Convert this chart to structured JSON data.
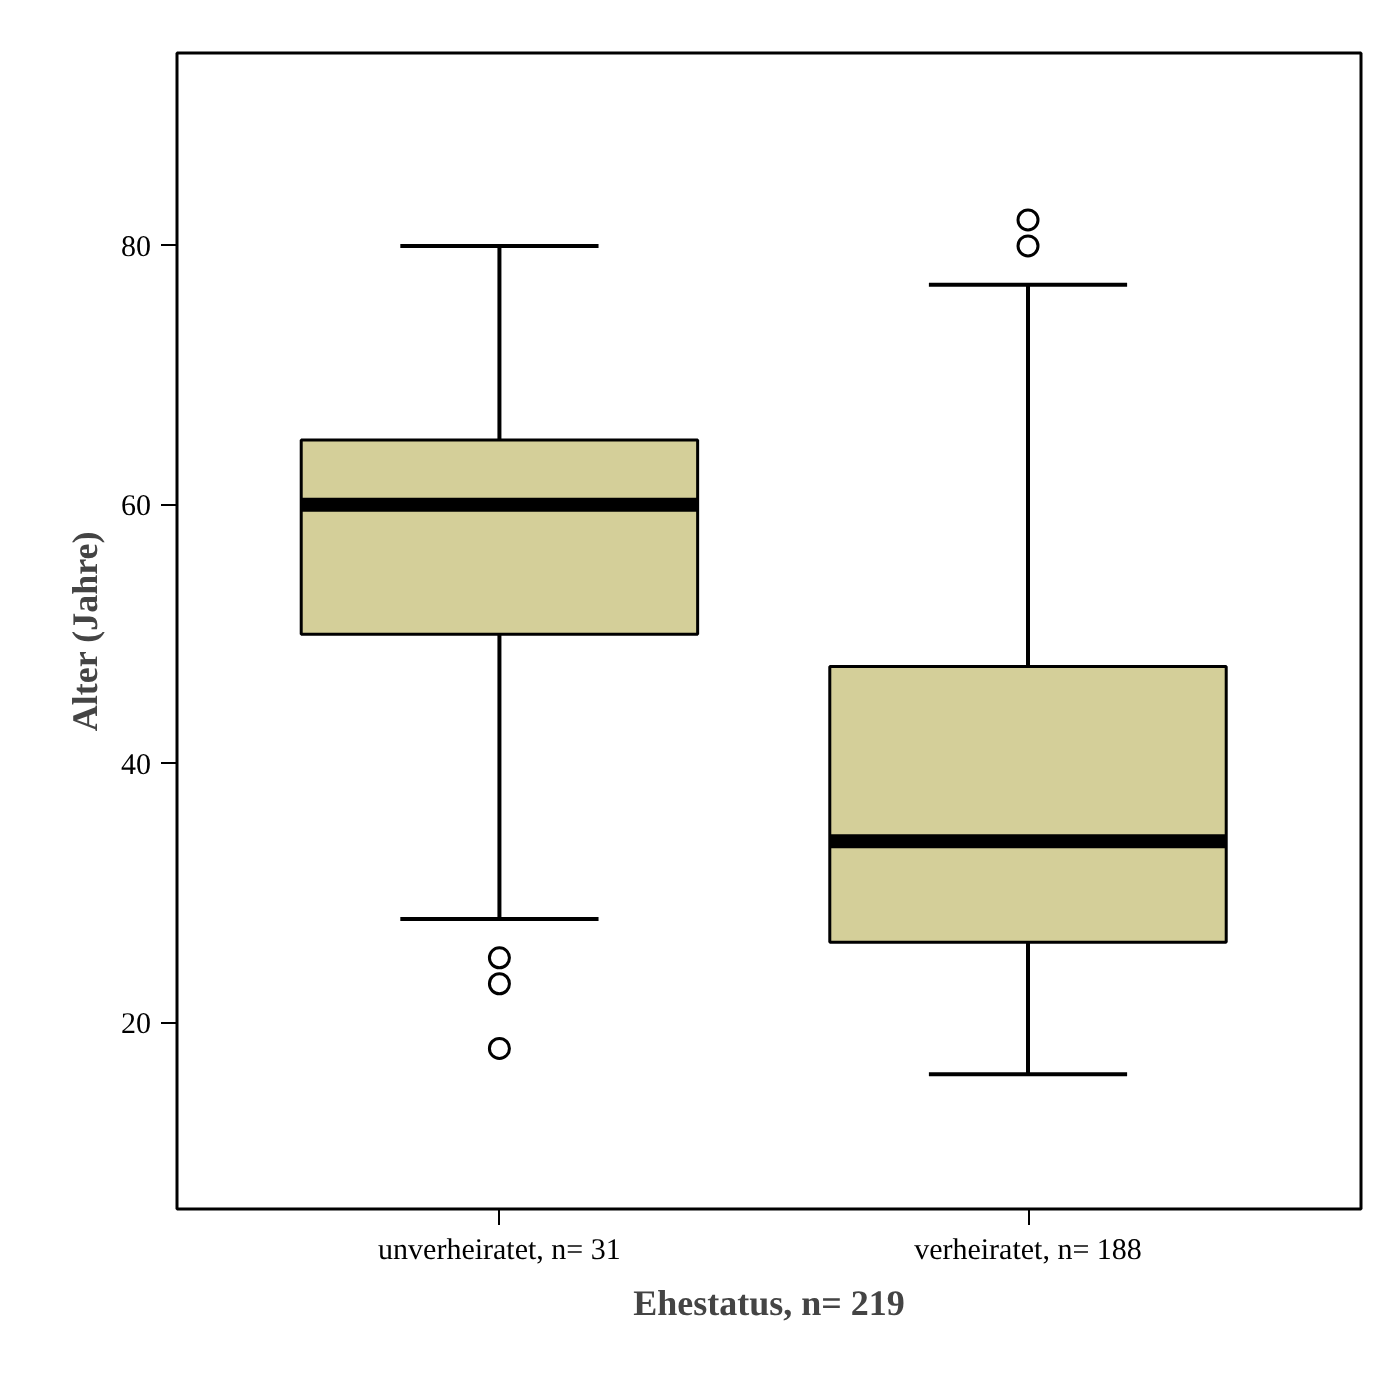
{
  "chart_data": {
    "type": "box",
    "xlabel": "Ehestatus, n= 219",
    "ylabel": "Alter (Jahre)",
    "categories": [
      "unverheiratet, n= 31",
      "verheiratet, n= 188"
    ],
    "color": "#d4cf99",
    "boxes": [
      {
        "low": 28,
        "q1": 50,
        "median": 60,
        "q3": 65,
        "high": 80,
        "outliers": [
          25,
          23,
          18
        ]
      },
      {
        "low": 16,
        "q1": 26.2,
        "median": 34,
        "q3": 47.5,
        "high": 77,
        "outliers": [
          82,
          80
        ]
      }
    ],
    "ylim": [
      5.6,
      94.9
    ],
    "yticks": [
      20,
      40,
      60,
      80
    ],
    "grid": false
  }
}
